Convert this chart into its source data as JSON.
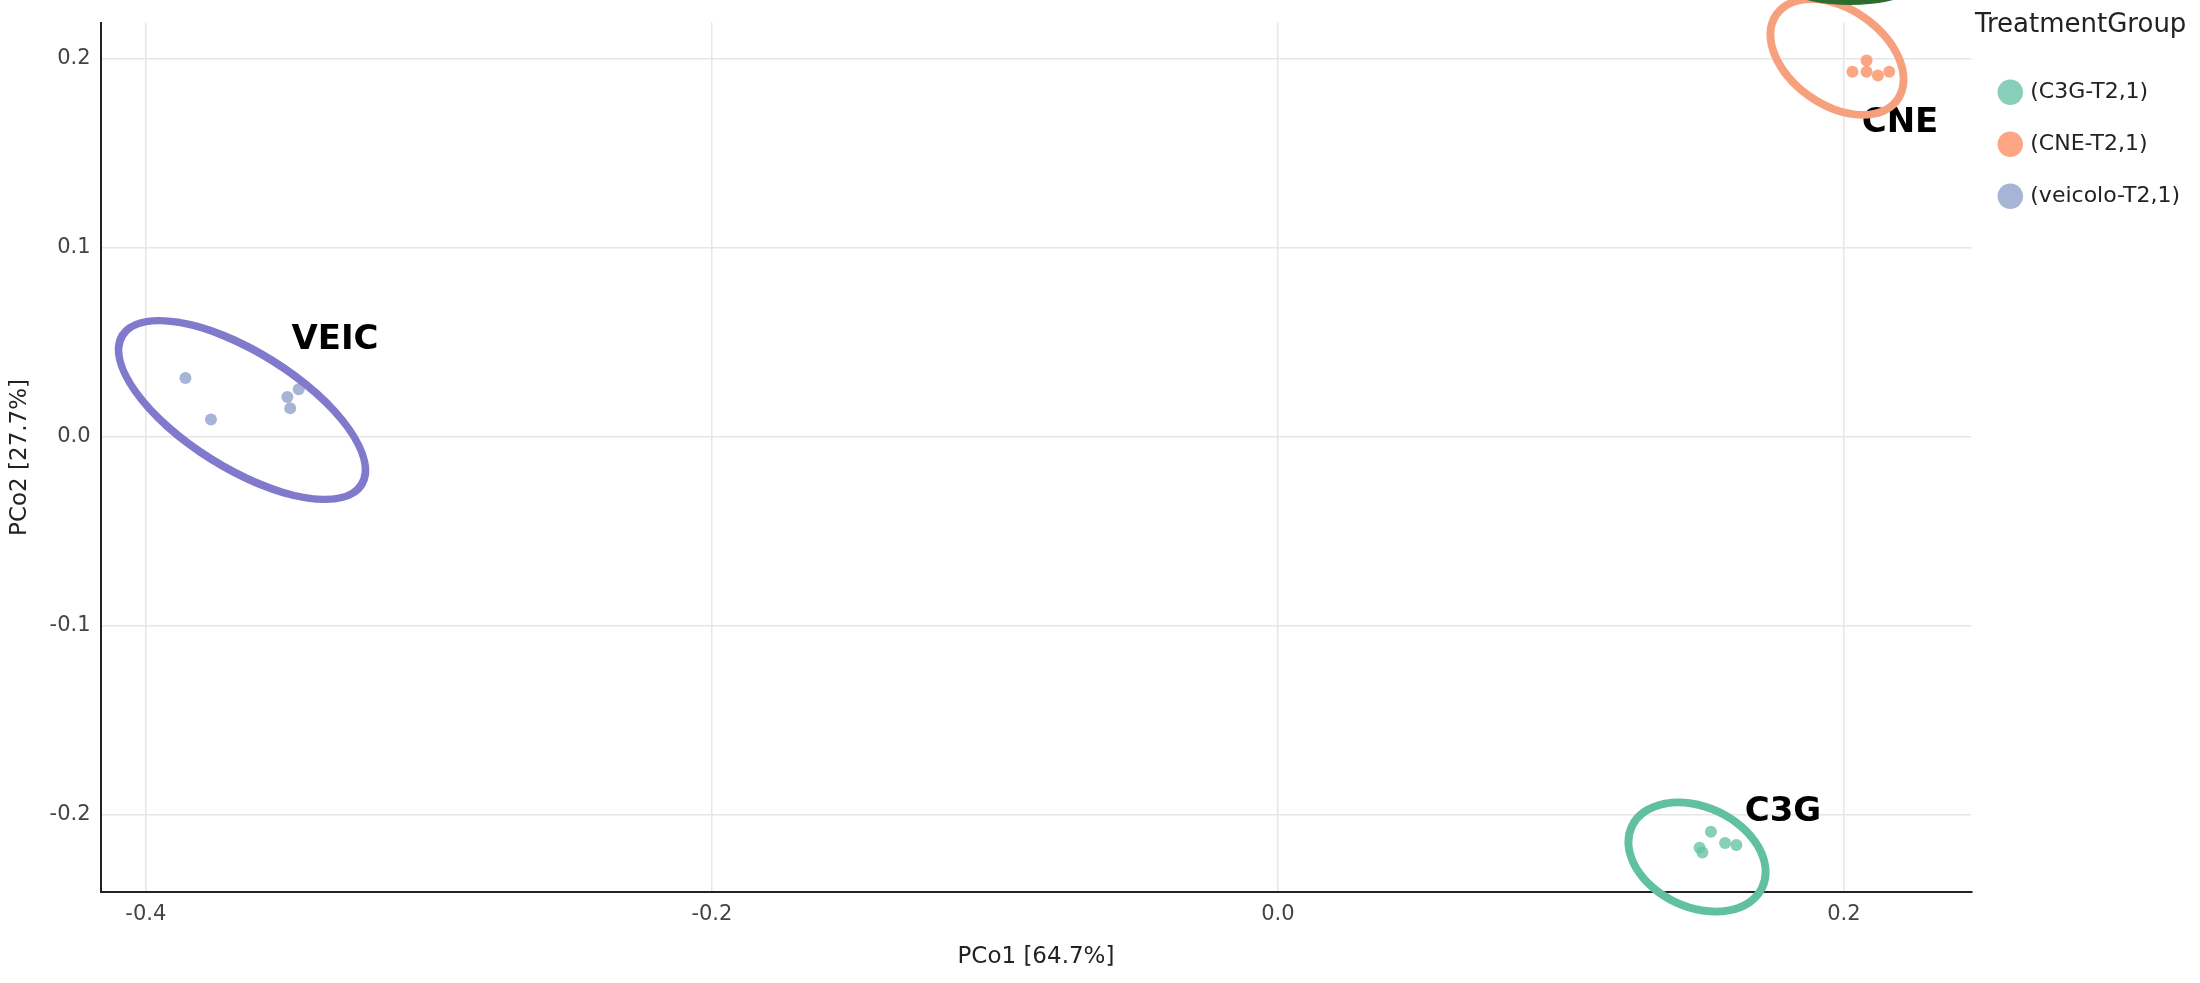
{
  "chart_data": {
    "type": "scatter",
    "xlabel": "PCo1 [64.7%]",
    "ylabel": "PCo2 [27.7%]",
    "legend_title": "TreatmentGroup",
    "legend": "top right",
    "grid": true,
    "marker": "circle",
    "xlim": [
      -0.416,
      0.245
    ],
    "xticks": [
      -0.4,
      -0.2,
      {
        "value": 0,
        "label": "0.0"
      },
      0.2
    ],
    "ylim": [
      -0.241,
      0.219
    ],
    "yticks": [
      -0.2,
      -0.1,
      {
        "value": 0,
        "label": "0.0"
      },
      0.1,
      0.2
    ],
    "series": [
      {
        "name": "(C3G-T2,1)",
        "color": "#66c2a5",
        "x": [
          0.153,
          0.149,
          0.15,
          0.158,
          0.162
        ],
        "values": [
          -0.209,
          -0.2175,
          -0.22,
          -0.215,
          -0.216
        ]
      },
      {
        "name": "(CNE-T2,1)",
        "color": "#fc8d62",
        "x": [
          0.208,
          0.203,
          0.208,
          0.212,
          0.216
        ],
        "values": [
          0.199,
          0.193,
          0.193,
          0.191,
          0.193
        ]
      },
      {
        "name": "(veicolo-T2,1)",
        "color": "#8da0cb",
        "x": [
          -0.386,
          -0.377,
          -0.346,
          -0.35,
          -0.349
        ],
        "values": [
          0.031,
          0.009,
          0.025,
          0.021,
          0.015
        ]
      }
    ],
    "annotations": [
      "VEIC",
      "CNE",
      "C3G"
    ]
  }
}
